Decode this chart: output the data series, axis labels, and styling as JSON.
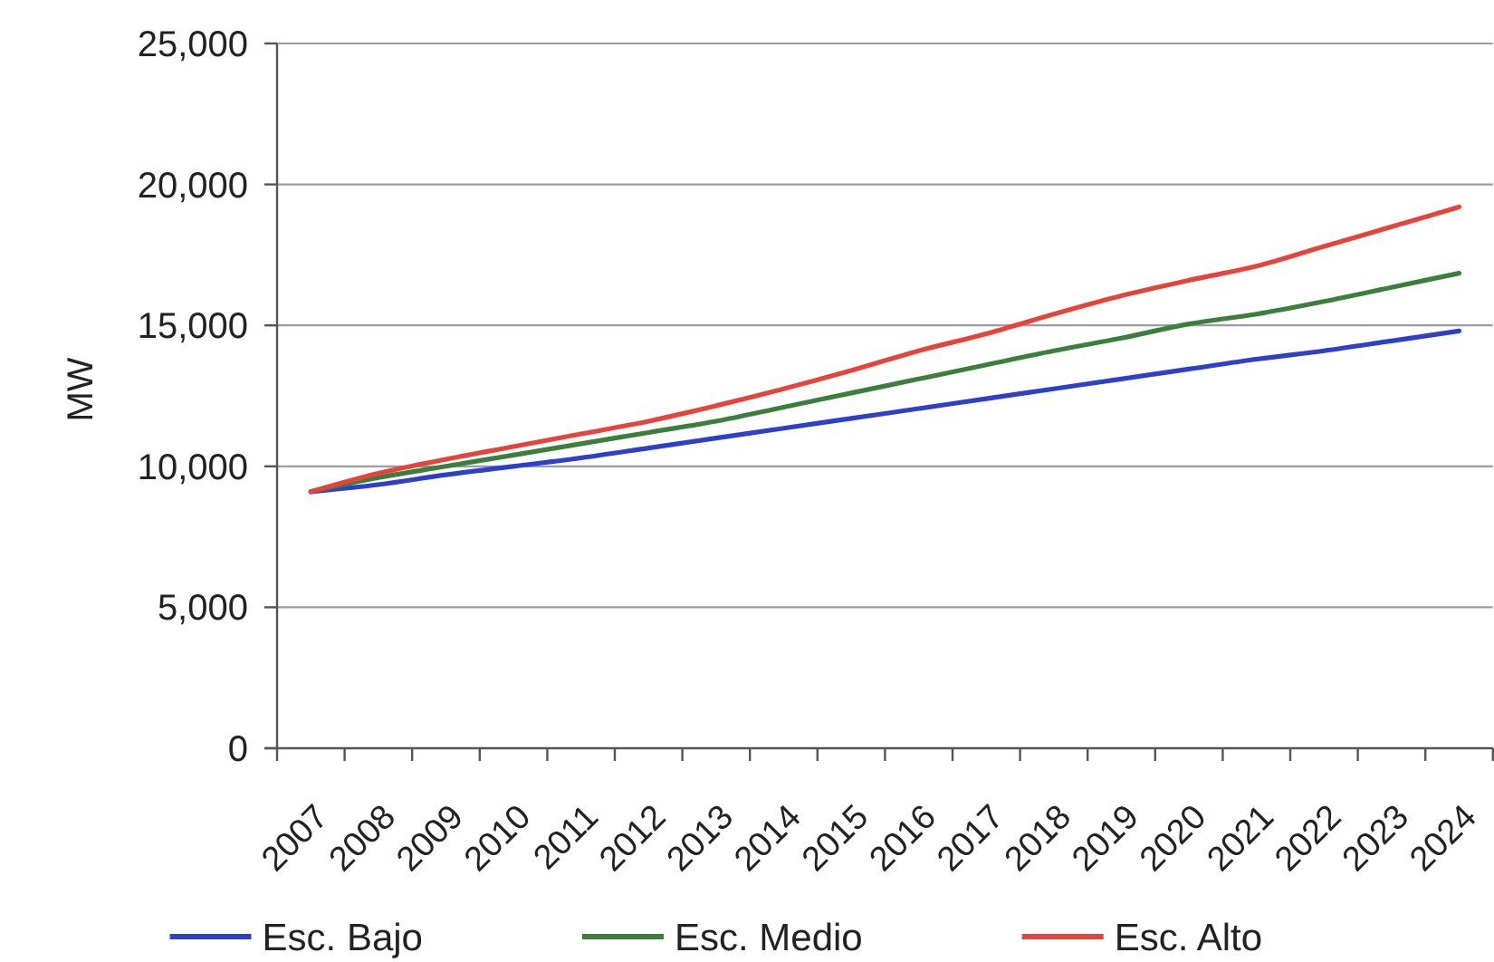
{
  "chart_data": {
    "type": "line",
    "ylabel": "MW",
    "categories": [
      "2007",
      "2008",
      "2009",
      "2010",
      "2011",
      "2012",
      "2013",
      "2014",
      "2015",
      "2016",
      "2017",
      "2018",
      "2019",
      "2020",
      "2021",
      "2022",
      "2023",
      "2024"
    ],
    "series": [
      {
        "name": "Esc. Bajo",
        "color": "#2e3fc9",
        "values": [
          9100,
          9350,
          9700,
          10000,
          10300,
          10650,
          11000,
          11350,
          11700,
          12050,
          12400,
          12750,
          13100,
          13450,
          13800,
          14100,
          14450,
          14800
        ]
      },
      {
        "name": "Esc. Medio",
        "color": "#3c7f3c",
        "values": [
          9100,
          9600,
          10000,
          10400,
          10800,
          11200,
          11600,
          12100,
          12600,
          13100,
          13600,
          14100,
          14550,
          15050,
          15400,
          15850,
          16350,
          16850
        ]
      },
      {
        "name": "Esc. Alto",
        "color": "#e6443a",
        "values": [
          9100,
          9750,
          10250,
          10700,
          11150,
          11600,
          12150,
          12750,
          13400,
          14100,
          14700,
          15400,
          16050,
          16600,
          17100,
          17800,
          18500,
          19200
        ]
      }
    ],
    "ylim": [
      0,
      25000
    ],
    "yticks": [
      0,
      {
        "value": 5000,
        "label": "5,000"
      },
      {
        "value": 10000,
        "label": "10,000"
      },
      {
        "value": 15000,
        "label": "15,000"
      },
      {
        "value": 20000,
        "label": "20,000"
      },
      {
        "value": 25000,
        "label": "25,000"
      }
    ],
    "grid": "y",
    "legend": "bottom"
  }
}
